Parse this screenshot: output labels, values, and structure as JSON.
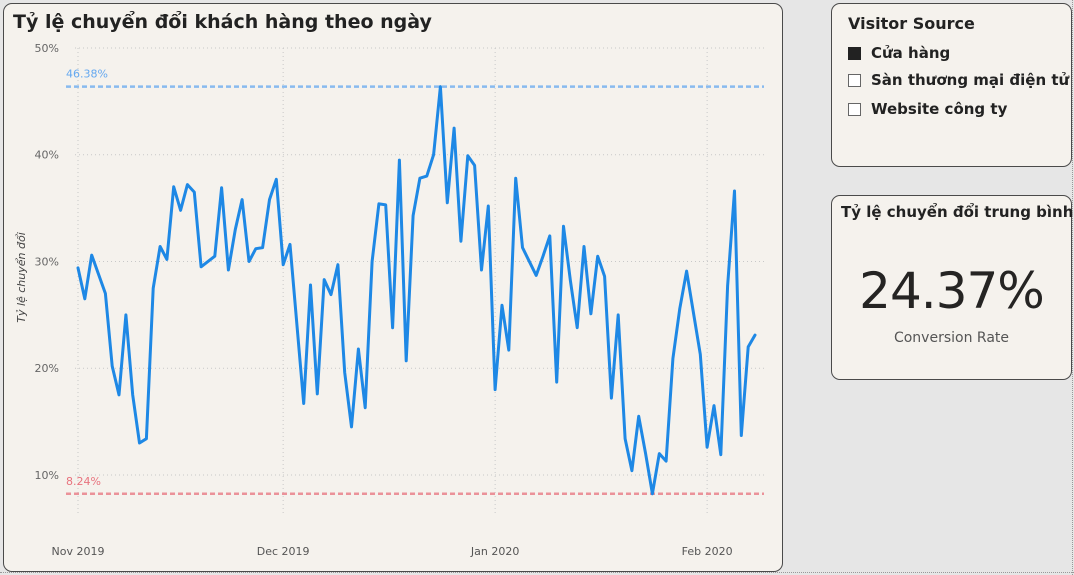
{
  "chart": {
    "title": "Tỷ lệ chuyển đổi khách hàng theo ngày",
    "max_label": "46.38%",
    "min_label": "8.24%"
  },
  "slicer": {
    "title": "Visitor Source",
    "items": [
      {
        "label": "Cửa hàng",
        "checked": true
      },
      {
        "label": "Sàn thương mại điện tử",
        "checked": false
      },
      {
        "label": "Website công ty",
        "checked": false
      }
    ]
  },
  "kpi": {
    "title": "Tỷ lệ chuyển đổi trung bình",
    "value": "24.37%",
    "label": "Conversion Rate"
  },
  "colors": {
    "line": "#1e88e5",
    "max_line": "#64a8f0",
    "min_line": "#e8737e",
    "grid": "#c8c8c8"
  },
  "chart_data": {
    "type": "line",
    "ylabel": "Tỷ lệ chuyển đổi",
    "xlabel": "",
    "ylim": [
      0.07,
      0.5
    ],
    "y_ticks": [
      0.1,
      0.2,
      0.3,
      0.4,
      0.5
    ],
    "y_tick_labels": [
      "10%",
      "20%",
      "30%",
      "40%",
      "50%"
    ],
    "x_ticks": [
      "2019-11-01",
      "2019-12-01",
      "2020-01-01",
      "2020-02-01"
    ],
    "x_tick_labels": [
      "Nov 2019",
      "Dec 2019",
      "Jan 2020",
      "Feb 2020"
    ],
    "reference_lines": [
      {
        "value": 0.4638,
        "label": "46.38%",
        "kind": "max"
      },
      {
        "value": 0.0824,
        "label": "8.24%",
        "kind": "min"
      }
    ],
    "series": [
      {
        "values": [
          [
            "2019-11-01",
            0.294
          ],
          [
            "2019-11-02",
            0.265
          ],
          [
            "2019-11-03",
            0.306
          ],
          [
            "2019-11-05",
            0.27
          ],
          [
            "2019-11-06",
            0.202
          ],
          [
            "2019-11-07",
            0.175
          ],
          [
            "2019-11-08",
            0.25
          ],
          [
            "2019-11-09",
            0.175
          ],
          [
            "2019-11-10",
            0.13
          ],
          [
            "2019-11-11",
            0.134
          ],
          [
            "2019-11-12",
            0.275
          ],
          [
            "2019-11-13",
            0.314
          ],
          [
            "2019-11-14",
            0.302
          ],
          [
            "2019-11-15",
            0.37
          ],
          [
            "2019-11-16",
            0.348
          ],
          [
            "2019-11-17",
            0.372
          ],
          [
            "2019-11-18",
            0.365
          ],
          [
            "2019-11-19",
            0.295
          ],
          [
            "2019-11-21",
            0.305
          ],
          [
            "2019-11-22",
            0.369
          ],
          [
            "2019-11-23",
            0.292
          ],
          [
            "2019-11-24",
            0.33
          ],
          [
            "2019-11-25",
            0.358
          ],
          [
            "2019-11-26",
            0.3
          ],
          [
            "2019-11-27",
            0.312
          ],
          [
            "2019-11-28",
            0.313
          ],
          [
            "2019-11-29",
            0.358
          ],
          [
            "2019-11-30",
            0.377
          ],
          [
            "2019-12-01",
            0.297
          ],
          [
            "2019-12-02",
            0.316
          ],
          [
            "2019-12-04",
            0.167
          ],
          [
            "2019-12-05",
            0.278
          ],
          [
            "2019-12-06",
            0.176
          ],
          [
            "2019-12-07",
            0.283
          ],
          [
            "2019-12-08",
            0.269
          ],
          [
            "2019-12-09",
            0.297
          ],
          [
            "2019-12-10",
            0.196
          ],
          [
            "2019-12-11",
            0.145
          ],
          [
            "2019-12-12",
            0.218
          ],
          [
            "2019-12-13",
            0.163
          ],
          [
            "2019-12-14",
            0.3
          ],
          [
            "2019-12-15",
            0.354
          ],
          [
            "2019-12-16",
            0.353
          ],
          [
            "2019-12-17",
            0.238
          ],
          [
            "2019-12-18",
            0.395
          ],
          [
            "2019-12-19",
            0.207
          ],
          [
            "2019-12-20",
            0.343
          ],
          [
            "2019-12-21",
            0.378
          ],
          [
            "2019-12-22",
            0.38
          ],
          [
            "2019-12-23",
            0.4
          ],
          [
            "2019-12-24",
            0.4638
          ],
          [
            "2019-12-25",
            0.355
          ],
          [
            "2019-12-26",
            0.425
          ],
          [
            "2019-12-27",
            0.319
          ],
          [
            "2019-12-28",
            0.399
          ],
          [
            "2019-12-29",
            0.39
          ],
          [
            "2019-12-30",
            0.292
          ],
          [
            "2019-12-31",
            0.352
          ],
          [
            "2020-01-01",
            0.18
          ],
          [
            "2020-01-02",
            0.259
          ],
          [
            "2020-01-03",
            0.217
          ],
          [
            "2020-01-04",
            0.378
          ],
          [
            "2020-01-05",
            0.313
          ],
          [
            "2020-01-07",
            0.287
          ],
          [
            "2020-01-08",
            0.305
          ],
          [
            "2020-01-09",
            0.324
          ],
          [
            "2020-01-10",
            0.187
          ],
          [
            "2020-01-11",
            0.333
          ],
          [
            "2020-01-12",
            0.282
          ],
          [
            "2020-01-13",
            0.238
          ],
          [
            "2020-01-14",
            0.314
          ],
          [
            "2020-01-15",
            0.251
          ],
          [
            "2020-01-16",
            0.305
          ],
          [
            "2020-01-17",
            0.286
          ],
          [
            "2020-01-18",
            0.172
          ],
          [
            "2020-01-19",
            0.25
          ],
          [
            "2020-01-20",
            0.134
          ],
          [
            "2020-01-21",
            0.104
          ],
          [
            "2020-01-22",
            0.155
          ],
          [
            "2020-01-23",
            0.12
          ],
          [
            "2020-01-24",
            0.0824
          ],
          [
            "2020-01-25",
            0.12
          ],
          [
            "2020-01-26",
            0.113
          ],
          [
            "2020-01-27",
            0.209
          ],
          [
            "2020-01-28",
            0.256
          ],
          [
            "2020-01-29",
            0.291
          ],
          [
            "2020-01-31",
            0.213
          ],
          [
            "2020-02-01",
            0.126
          ],
          [
            "2020-02-02",
            0.165
          ],
          [
            "2020-02-03",
            0.119
          ],
          [
            "2020-02-04",
            0.277
          ],
          [
            "2020-02-05",
            0.366
          ],
          [
            "2020-02-06",
            0.137
          ],
          [
            "2020-02-07",
            0.22
          ],
          [
            "2020-02-08",
            0.231
          ]
        ]
      }
    ]
  }
}
